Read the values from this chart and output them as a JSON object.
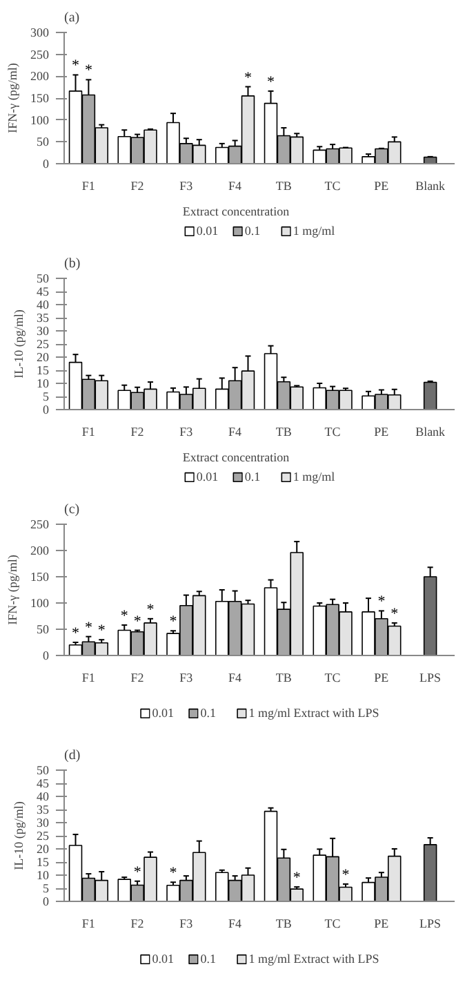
{
  "chart_data": [
    {
      "type": "bar",
      "title": "(a)",
      "ylabel": "IFN-γ (pg/ml)",
      "legend_title": "Extract concentration",
      "legend": "bottom",
      "grid": false,
      "categories": [
        "F1",
        "F2",
        "F3",
        "F4",
        "TB",
        "TC",
        "PE",
        "Blank"
      ],
      "ylim": [
        0,
        300
      ],
      "yticks": [
        0,
        50,
        100,
        150,
        200,
        250,
        300
      ],
      "series": [
        {
          "name": "0.01",
          "color": "#ffffff",
          "values": [
            166,
            62,
            94,
            37,
            138,
            31,
            16,
            null
          ],
          "errors": [
            37,
            15,
            21,
            9,
            28,
            8,
            6,
            null
          ],
          "value_labels": [
            "*",
            null,
            null,
            null,
            "*",
            null,
            null,
            null
          ]
        },
        {
          "name": "0.1",
          "color": "#a6a6a6",
          "values": [
            157,
            60,
            46,
            40,
            64,
            34,
            34,
            null
          ],
          "errors": [
            35,
            7,
            12,
            13,
            18,
            10,
            1,
            null
          ],
          "value_labels": [
            "*",
            null,
            null,
            null,
            null,
            null,
            null,
            null
          ]
        },
        {
          "name": "1 mg/ml",
          "color": "#e3e3e3",
          "values": [
            82,
            77,
            42,
            155,
            61,
            36,
            50,
            null
          ],
          "errors": [
            7,
            2,
            13,
            21,
            8,
            1,
            11,
            null
          ],
          "value_labels": [
            null,
            null,
            null,
            "*",
            null,
            null,
            null,
            null
          ]
        },
        {
          "color": "#6e6e6e",
          "values": [
            null,
            null,
            null,
            null,
            null,
            null,
            null,
            15
          ],
          "errors": [
            null,
            null,
            null,
            null,
            null,
            null,
            null,
            1
          ]
        }
      ]
    },
    {
      "type": "bar",
      "title": "(b)",
      "ylabel": "IL-10 (pg/ml)",
      "legend_title": "Extract concentration",
      "legend": "bottom",
      "grid": false,
      "categories": [
        "F1",
        "F2",
        "F3",
        "F4",
        "TB",
        "TC",
        "PE",
        "Blank"
      ],
      "ylim": [
        0,
        50
      ],
      "yticks": [
        0,
        5,
        10,
        15,
        20,
        25,
        30,
        35,
        40,
        45,
        50
      ],
      "series": [
        {
          "name": "0.01",
          "color": "#ffffff",
          "values": [
            18,
            7.3,
            6.7,
            7.8,
            21.3,
            8.3,
            5.2,
            null
          ],
          "errors": [
            3,
            2,
            1.5,
            4.2,
            3,
            1.7,
            1.7,
            null
          ]
        },
        {
          "name": "0.1",
          "color": "#a6a6a6",
          "values": [
            11.5,
            6.5,
            5.8,
            11,
            10.6,
            7.3,
            5.8,
            null
          ],
          "errors": [
            1.5,
            2,
            2.8,
            5,
            1.7,
            1.5,
            1.7,
            null
          ]
        },
        {
          "name": "1 mg/ml",
          "color": "#e3e3e3",
          "values": [
            11,
            7.8,
            8.1,
            14.7,
            8.6,
            7.3,
            5.6,
            null
          ],
          "errors": [
            2,
            2.7,
            3.6,
            5.7,
            0.5,
            0.8,
            2.1,
            null
          ]
        },
        {
          "color": "#6e6e6e",
          "values": [
            null,
            null,
            null,
            null,
            null,
            null,
            null,
            10.4
          ],
          "errors": [
            null,
            null,
            null,
            null,
            null,
            null,
            null,
            0.4
          ]
        }
      ]
    },
    {
      "type": "bar",
      "title": "(c)",
      "ylabel": "IFN-γ (pg/ml)",
      "legend": "bottom",
      "grid": false,
      "categories": [
        "F1",
        "F2",
        "F3",
        "F4",
        "TB",
        "TC",
        "PE",
        "LPS"
      ],
      "ylim": [
        0,
        250
      ],
      "yticks": [
        0,
        50,
        100,
        150,
        200,
        250
      ],
      "series": [
        {
          "name": "0.01",
          "color": "#ffffff",
          "values": [
            20,
            48,
            42,
            103,
            129,
            94,
            83,
            null
          ],
          "errors": [
            5,
            10,
            5,
            22,
            15,
            6,
            26,
            null
          ],
          "value_labels": [
            "*",
            "*",
            "*",
            null,
            null,
            null,
            null,
            null
          ]
        },
        {
          "name": "0.1",
          "color": "#a6a6a6",
          "values": [
            26,
            45,
            95,
            103,
            88,
            97,
            70,
            null
          ],
          "errors": [
            10,
            3,
            20,
            20,
            13,
            10,
            15,
            null
          ],
          "value_labels": [
            "*",
            "*",
            null,
            null,
            null,
            null,
            "*",
            null
          ]
        },
        {
          "name": "1 mg/ml Extract with LPS",
          "color": "#e3e3e3",
          "values": [
            24,
            62,
            114,
            98,
            196,
            83,
            56,
            null
          ],
          "errors": [
            6,
            8,
            8,
            7,
            21,
            17,
            6,
            null
          ],
          "value_labels": [
            "*",
            "*",
            null,
            null,
            null,
            null,
            "*",
            null
          ]
        },
        {
          "color": "#6e6e6e",
          "values": [
            null,
            null,
            null,
            null,
            null,
            null,
            null,
            150
          ],
          "errors": [
            null,
            null,
            null,
            null,
            null,
            null,
            null,
            18
          ]
        }
      ]
    },
    {
      "type": "bar",
      "title": "(d)",
      "ylabel": "IL-10 (pg/ml)",
      "legend": "bottom",
      "grid": false,
      "categories": [
        "F1",
        "F2",
        "F3",
        "F4",
        "TB",
        "TC",
        "PE",
        "LPS"
      ],
      "ylim": [
        0,
        50
      ],
      "yticks": [
        0,
        5,
        10,
        15,
        20,
        25,
        30,
        35,
        40,
        45,
        50
      ],
      "series": [
        {
          "name": "0.01",
          "color": "#ffffff",
          "values": [
            21.3,
            8.4,
            6.1,
            11,
            34.3,
            17.6,
            7.2,
            null
          ],
          "errors": [
            4.2,
            0.8,
            1.2,
            0.9,
            1.3,
            2.3,
            1.7,
            null
          ],
          "value_labels": [
            null,
            null,
            "*",
            null,
            null,
            null,
            null,
            null
          ]
        },
        {
          "name": "0.1",
          "color": "#a6a6a6",
          "values": [
            8.8,
            6.2,
            8,
            8,
            16.5,
            17,
            9.2,
            null
          ],
          "errors": [
            1.7,
            1.5,
            1.7,
            1.7,
            3.3,
            7,
            1.8,
            null
          ],
          "value_labels": [
            null,
            "*",
            null,
            null,
            null,
            null,
            null,
            null
          ]
        },
        {
          "name": "1 mg/ml Extract with LPS",
          "color": "#e3e3e3",
          "values": [
            8,
            16.8,
            18.6,
            10,
            4.7,
            5.4,
            17.2,
            null
          ],
          "errors": [
            3.3,
            2,
            4.4,
            2.7,
            0.8,
            1.2,
            2.8,
            null
          ],
          "value_labels": [
            null,
            null,
            null,
            null,
            "*",
            "*",
            null,
            null
          ]
        },
        {
          "color": "#6e6e6e",
          "values": [
            null,
            null,
            null,
            null,
            null,
            null,
            null,
            21.6
          ],
          "errors": [
            null,
            null,
            null,
            null,
            null,
            null,
            null,
            2.6
          ]
        }
      ]
    }
  ]
}
